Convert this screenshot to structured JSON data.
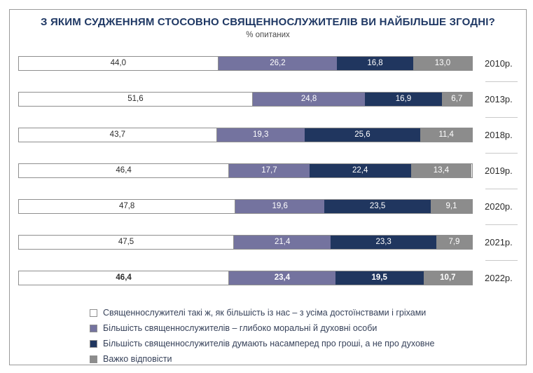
{
  "header": {
    "title": "З ЯКИМ СУДЖЕННЯМ СТОСОВНО СВЯЩЕННОСЛУЖИТЕЛІВ ВИ НАЙБІЛЬШЕ ЗГОДНІ?",
    "subtitle": "% опитаних"
  },
  "chart_data": {
    "type": "bar",
    "subtype": "horizontal-stacked",
    "stacked": true,
    "title": "З ЯКИМ СУДЖЕННЯМ СТОСОВНО СВЯЩЕННОСЛУЖИТЕЛІВ ВИ НАЙБІЛЬШЕ ЗГОДНІ?",
    "subtitle": "% опитаних",
    "categories": [
      "2010р.",
      "2013р.",
      "2018р.",
      "2019р.",
      "2020р.",
      "2021р.",
      "2022р."
    ],
    "series": [
      {
        "name": "Священнослужителі такі ж, як більшість із нас – з усіма достоїнствами і гріхами",
        "color": "#FFFFFF",
        "text_color": "#2b2b2b",
        "values": [
          44.0,
          51.6,
          43.7,
          46.4,
          47.8,
          47.5,
          46.4
        ]
      },
      {
        "name": "Більшість священнослужителів – глибоко моральні й духовні особи",
        "color": "#74739F",
        "text_color": "#FFFFFF",
        "values": [
          26.2,
          24.8,
          19.3,
          17.7,
          19.6,
          21.4,
          23.4
        ]
      },
      {
        "name": "Більшість священнослужителів думають насамперед про гроші, а не про духовне",
        "color": "#20365F",
        "text_color": "#FFFFFF",
        "values": [
          16.8,
          16.9,
          25.6,
          22.4,
          23.5,
          23.3,
          19.5
        ]
      },
      {
        "name": "Важко відповісти",
        "color": "#8C8C8C",
        "text_color": "#FFFFFF",
        "values": [
          13.0,
          6.7,
          11.4,
          13.4,
          9.1,
          7.9,
          10.7
        ]
      }
    ],
    "xlim": [
      0,
      100
    ],
    "value_format": "decimal-comma-1",
    "grid": false,
    "legend_position": "bottom",
    "emphasized_category": "2022р.",
    "colors": {
      "title": "#1F3864",
      "bar_border": "#8F8F8F",
      "frame_border": "#9A9A9A",
      "separator": "#C9C9C9"
    }
  }
}
